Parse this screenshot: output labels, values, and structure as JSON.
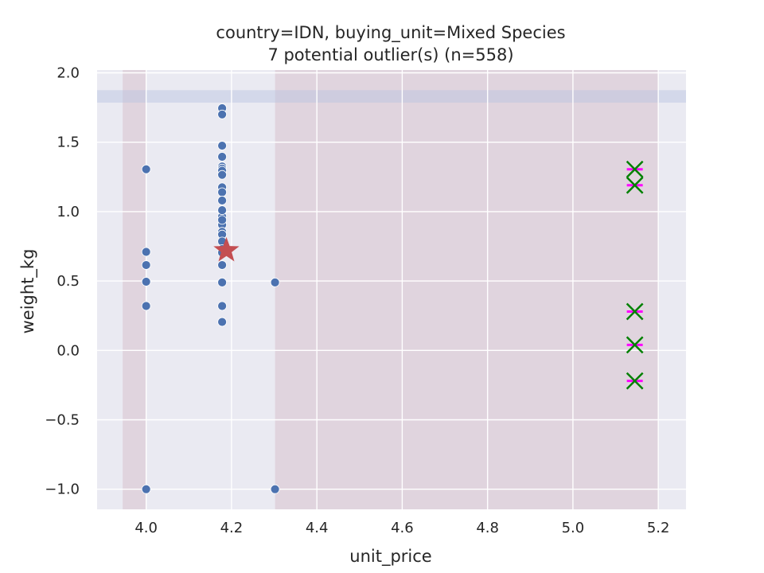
{
  "chart_data": {
    "type": "scatter",
    "title": "country=IDN, buying_unit=Mixed Species",
    "subtitle": "7 potential outlier(s) (n=558)",
    "xlabel": "unit_price",
    "ylabel": "weight_kg",
    "xlim": [
      3.885,
      5.265
    ],
    "ylim": [
      -1.145,
      2.02
    ],
    "x_ticks": [
      4.0,
      4.2,
      4.4,
      4.6,
      4.8,
      5.0,
      5.2
    ],
    "x_tick_labels": [
      "4.0",
      "4.2",
      "4.4",
      "4.6",
      "4.8",
      "5.0",
      "5.2"
    ],
    "y_ticks": [
      -1.0,
      -0.5,
      0.0,
      0.5,
      1.0,
      1.5,
      2.0
    ],
    "y_tick_labels": [
      "−1.0",
      "−0.5",
      "0.0",
      "0.5",
      "1.0",
      "1.5",
      "2.0"
    ],
    "grid": true,
    "shaded_regions": [
      {
        "axis": "x",
        "from": 3.945,
        "to": 4.0,
        "color": "#c9a1b0"
      },
      {
        "axis": "x",
        "from": 4.302,
        "to": 5.2,
        "color": "#c9a1b0"
      },
      {
        "axis": "y",
        "from": 1.785,
        "to": 1.875,
        "color": "#b8c3e0"
      }
    ],
    "points": {
      "color": "#4c72b0",
      "x": [
        4.0,
        4.0,
        4.0,
        4.0,
        4.0,
        4.0,
        4.178,
        4.178,
        4.178,
        4.178,
        4.178,
        4.178,
        4.178,
        4.178,
        4.178,
        4.178,
        4.178,
        4.178,
        4.178,
        4.178,
        4.178,
        4.178,
        4.178,
        4.178,
        4.178,
        4.178,
        4.178,
        4.178,
        4.178,
        4.178,
        4.178,
        4.178,
        4.302,
        4.302
      ],
      "y": [
        1.305,
        0.71,
        0.615,
        0.495,
        0.32,
        -1.0,
        1.745,
        1.7,
        1.475,
        1.395,
        1.325,
        1.31,
        1.295,
        1.265,
        1.175,
        1.14,
        1.08,
        1.0,
        0.965,
        0.91,
        0.905,
        0.855,
        0.835,
        0.785,
        0.73,
        0.705,
        0.615,
        0.49,
        0.32,
        0.205,
        1.01,
        0.94,
        0.49,
        -1.0
      ]
    },
    "centroid": {
      "x": 4.188,
      "y": 0.72,
      "color": "#c44e52",
      "marker": "star"
    },
    "outliers": {
      "x": [
        5.145,
        5.145,
        5.145,
        5.145,
        5.145
      ],
      "y": [
        1.305,
        1.19,
        0.28,
        0.04,
        -0.22
      ],
      "marker_colors": [
        "#008000",
        "#ff00ff"
      ]
    }
  }
}
